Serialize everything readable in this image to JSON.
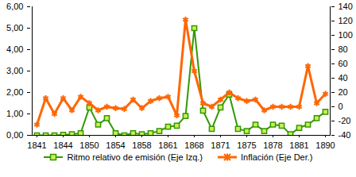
{
  "chart_data": {
    "type": "line",
    "categories": [
      "1841",
      null,
      null,
      "1844",
      null,
      null,
      "1850",
      null,
      null,
      "1854",
      null,
      null,
      "1858",
      null,
      null,
      "1861",
      null,
      null,
      "1868",
      null,
      null,
      "1871",
      null,
      null,
      "1875",
      null,
      null,
      "1878",
      null,
      null,
      "1881",
      null,
      null,
      "1890"
    ],
    "series": [
      {
        "name": "Ritmo relativo de emisión (Eje Izq.)",
        "color": "#339900",
        "marker": "square",
        "values": [
          0,
          0,
          0,
          0.02,
          0.05,
          0.1,
          1.3,
          0.5,
          0.8,
          0.1,
          0,
          0.1,
          0.05,
          0.1,
          0.2,
          0.4,
          0.45,
          0.9,
          5.0,
          1.15,
          0.3,
          1.3,
          1.9,
          0.3,
          0.2,
          0.5,
          0.2,
          0.5,
          0.45,
          0.05,
          0.35,
          0.5,
          0.8,
          1.1
        ]
      },
      {
        "name": "Inflación (Eje Der.)",
        "color": "#ff6600",
        "marker": "asterisk",
        "axis": "y2",
        "values": [
          -25,
          12,
          -10,
          12,
          -5,
          14,
          5,
          -5,
          0,
          -2,
          -3,
          10,
          -2,
          8,
          12,
          14,
          -12,
          122,
          50,
          5,
          0,
          10,
          20,
          12,
          8,
          10,
          -5,
          0,
          0,
          0,
          0,
          57,
          5,
          18
        ]
      }
    ],
    "ylim": [
      0,
      6
    ],
    "yticks": [
      {
        "value": 0,
        "label": "0,00"
      },
      {
        "value": 1,
        "label": "1,00"
      },
      {
        "value": 2,
        "label": "2,00"
      },
      {
        "value": 3,
        "label": "3,00"
      },
      {
        "value": 4,
        "label": "4,00"
      },
      {
        "value": 5,
        "label": "5,00"
      },
      {
        "value": 6,
        "label": "6,00"
      }
    ],
    "y2lim": [
      -40,
      140
    ],
    "y2ticks": [
      -40,
      -20,
      0,
      20,
      40,
      60,
      80,
      100,
      120,
      140
    ],
    "grid": false,
    "legend": "bottom"
  }
}
